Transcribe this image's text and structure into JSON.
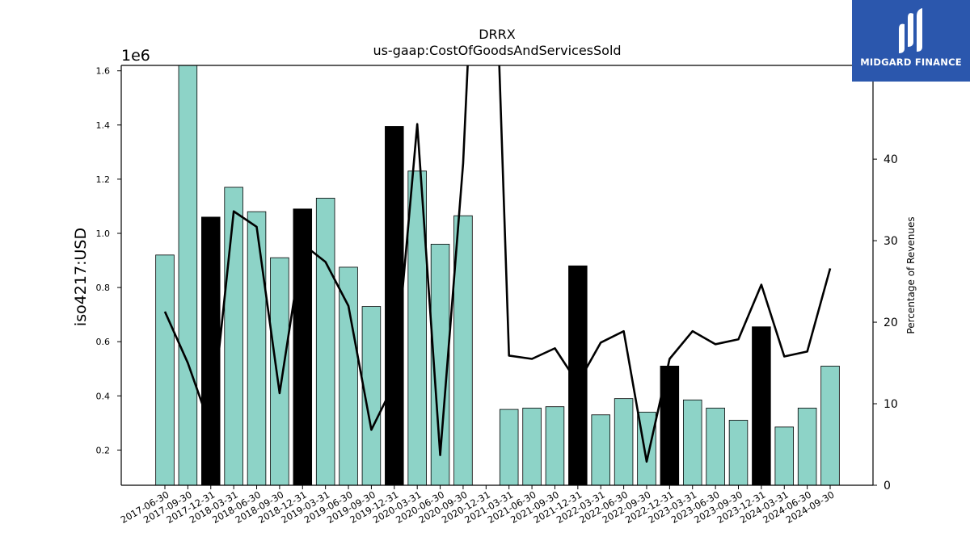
{
  "logo": {
    "text": "MIDGARD FINANCE"
  },
  "chart_data": {
    "type": "bar",
    "title": "DRRX",
    "subtitle": "us-gaap:CostOfGoodsAndServicesSold",
    "ylabel": "iso4217:USD",
    "y_offset_label": "1e6",
    "y2label": "Percentage of Revenues",
    "ylim": [
      70000,
      1620000
    ],
    "y2lim": [
      0,
      51.5
    ],
    "yticks": [
      "0.2",
      "0.4",
      "0.6",
      "0.8",
      "1.0",
      "1.2",
      "1.4",
      "1.6"
    ],
    "y2ticks": [
      "0",
      "10",
      "20",
      "30",
      "40",
      "50"
    ],
    "categories": [
      "2017-06-30",
      "2017-09-30",
      "2017-12-31",
      "2018-03-31",
      "2018-06-30",
      "2018-09-30",
      "2018-12-31",
      "2019-03-31",
      "2019-06-30",
      "2019-09-30",
      "2019-12-31",
      "2020-03-31",
      "2020-06-30",
      "2020-09-30",
      "2020-12-31",
      "2021-03-31",
      "2021-06-30",
      "2021-09-30",
      "2021-12-31",
      "2022-03-31",
      "2022-06-30",
      "2022-09-30",
      "2022-12-31",
      "2023-03-31",
      "2023-06-30",
      "2023-09-30",
      "2023-12-31",
      "2024-03-31",
      "2024-06-30",
      "2024-09-30"
    ],
    "series": [
      {
        "kind": "bar",
        "values": [
          920000,
          1650000,
          1060000,
          1170000,
          1080000,
          910000,
          1090000,
          1130000,
          875000,
          730000,
          1395000,
          1230000,
          960000,
          1065000,
          null,
          350000,
          355000,
          360000,
          880000,
          330000,
          390000,
          340000,
          510000,
          385000,
          355000,
          310000,
          655000,
          285000,
          355000,
          510000
        ],
        "highlight": [
          false,
          false,
          true,
          false,
          false,
          false,
          true,
          false,
          false,
          false,
          true,
          false,
          false,
          false,
          false,
          false,
          false,
          false,
          true,
          false,
          false,
          false,
          true,
          false,
          false,
          false,
          true,
          false,
          false,
          false
        ]
      },
      {
        "kind": "line",
        "axis": "y2",
        "values": [
          21.3,
          15.0,
          7.0,
          33.6,
          31.7,
          11.3,
          29.6,
          27.4,
          22.0,
          6.8,
          12.5,
          44.3,
          3.7,
          39.5,
          100.0,
          15.9,
          15.5,
          16.8,
          12.5,
          17.5,
          18.9,
          2.9,
          15.5,
          18.9,
          17.3,
          17.9,
          24.6,
          15.8,
          16.4,
          26.6
        ]
      }
    ],
    "colors": {
      "bar": "#8dd3c7",
      "highlight": "#000000",
      "line": "#000000",
      "logo_bg": "#2b57ad"
    },
    "grid": false,
    "legend": "none"
  }
}
